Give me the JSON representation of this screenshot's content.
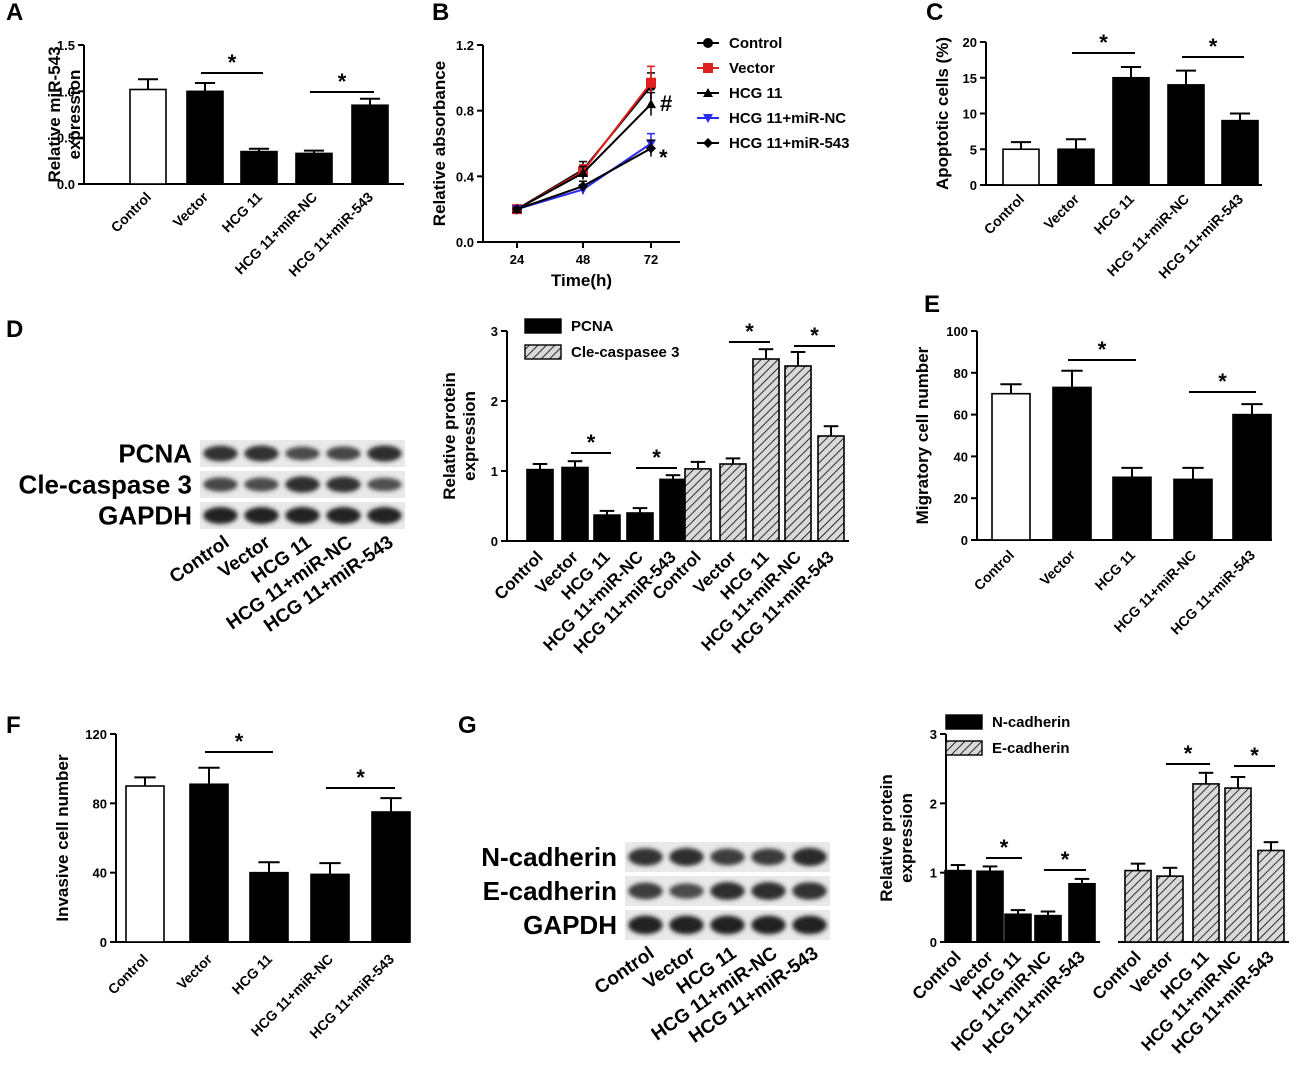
{
  "chart_data": [
    {
      "panel": "A",
      "type": "bar",
      "ylabel": [
        "Relative miR-543",
        "expression"
      ],
      "ylim": [
        0,
        1.5
      ],
      "yticks": [
        "0.0",
        "0.5",
        "1.0",
        "1.5"
      ],
      "categories": [
        "Control",
        "Vector",
        "HCG 11",
        "HCG 11+miR-NC",
        "HCG 11+miR-543"
      ],
      "values": [
        1.02,
        1.0,
        0.35,
        0.33,
        0.85
      ],
      "errors": [
        0.11,
        0.09,
        0.03,
        0.03,
        0.07
      ],
      "fills": [
        "white",
        "black",
        "black",
        "black",
        "black"
      ],
      "significance": [
        {
          "from": 1,
          "to": 2,
          "mark": "*"
        },
        {
          "from": 3,
          "to": 4,
          "mark": "*"
        }
      ]
    },
    {
      "panel": "B",
      "type": "line",
      "xlabel": "Time(h)",
      "ylabel": "Relative absorbance",
      "x": [
        "24",
        "48",
        "72"
      ],
      "ylim": [
        0,
        1.2
      ],
      "yticks": [
        "0.0",
        "0.4",
        "0.8",
        "1.2"
      ],
      "series": [
        {
          "name": "Control",
          "values": [
            0.2,
            0.44,
            0.95
          ],
          "color": "#000000",
          "marker": "circle"
        },
        {
          "name": "Vector",
          "values": [
            0.2,
            0.43,
            0.97
          ],
          "color": "#e02020",
          "marker": "square"
        },
        {
          "name": "HCG 11",
          "values": [
            0.2,
            0.42,
            0.84
          ],
          "color": "#000000",
          "marker": "triangle-up"
        },
        {
          "name": "HCG 11+miR-NC",
          "values": [
            0.2,
            0.32,
            0.6
          ],
          "color": "#2a2af0",
          "marker": "triangle-down"
        },
        {
          "name": "HCG 11+miR-543",
          "values": [
            0.2,
            0.34,
            0.57
          ],
          "color": "#000000",
          "marker": "diamond"
        }
      ],
      "annotations": [
        "#",
        "*"
      ]
    },
    {
      "panel": "C",
      "type": "bar",
      "ylabel": "Apoptotic cells (%)",
      "ylim": [
        0,
        20
      ],
      "yticks": [
        "0",
        "5",
        "10",
        "15",
        "20"
      ],
      "categories": [
        "Control",
        "Vector",
        "HCG 11",
        "HCG 11+miR-NC",
        "HCG 11+miR-543"
      ],
      "values": [
        5,
        5,
        15,
        14,
        9
      ],
      "errors": [
        1.0,
        1.4,
        1.5,
        2.0,
        1.0
      ],
      "fills": [
        "white",
        "black",
        "black",
        "black",
        "black"
      ],
      "significance": [
        {
          "from": 1,
          "to": 2,
          "mark": "*"
        },
        {
          "from": 3,
          "to": 4,
          "mark": "*"
        }
      ]
    },
    {
      "panel": "D",
      "type": "bar",
      "ylabel": [
        "Relative  protein",
        "expression"
      ],
      "ylim": [
        0,
        3
      ],
      "yticks": [
        "0",
        "1",
        "2",
        "3"
      ],
      "categories": [
        "Control",
        "Vector",
        "HCG 11",
        "HCG 11+miR-NC",
        "HCG 11+miR-543"
      ],
      "series": [
        {
          "name": "PCNA",
          "values": [
            1.02,
            1.05,
            0.37,
            0.4,
            0.88
          ],
          "errors": [
            0.08,
            0.09,
            0.06,
            0.07,
            0.06
          ],
          "fill": "solid"
        },
        {
          "name": "Cle-caspasee 3",
          "values": [
            1.03,
            1.1,
            2.6,
            2.5,
            1.5
          ],
          "errors": [
            0.1,
            0.08,
            0.14,
            0.2,
            0.14
          ],
          "fill": "hatched"
        }
      ],
      "significance": [
        {
          "series": 0,
          "from": 1,
          "to": 2,
          "mark": "*"
        },
        {
          "series": 0,
          "from": 3,
          "to": 4,
          "mark": "*"
        },
        {
          "series": 1,
          "from": 1,
          "to": 2,
          "mark": "*"
        },
        {
          "series": 1,
          "from": 3,
          "to": 4,
          "mark": "*"
        }
      ]
    },
    {
      "panel": "E",
      "type": "bar",
      "ylabel": "Migratory cell number",
      "ylim": [
        0,
        100
      ],
      "yticks": [
        "0",
        "20",
        "40",
        "60",
        "80",
        "100"
      ],
      "categories": [
        "Control",
        "Vector",
        "HCG 11",
        "HCG 11+miR-NC",
        "HCG 11+miR-543"
      ],
      "values": [
        70,
        73,
        30,
        29,
        60
      ],
      "errors": [
        4.5,
        8,
        4.5,
        5.5,
        5
      ],
      "fills": [
        "white",
        "black",
        "black",
        "black",
        "black"
      ],
      "significance": [
        {
          "from": 1,
          "to": 2,
          "mark": "*"
        },
        {
          "from": 3,
          "to": 4,
          "mark": "*"
        }
      ]
    },
    {
      "panel": "F",
      "type": "bar",
      "ylabel": "Invasive cell number",
      "ylim": [
        0,
        120
      ],
      "yticks": [
        "0",
        "40",
        "80",
        "120"
      ],
      "categories": [
        "Control",
        "Vector",
        "HCG 11",
        "HCG 11+miR-NC",
        "HCG 11+miR-543"
      ],
      "values": [
        90,
        91,
        40,
        39,
        75
      ],
      "errors": [
        5,
        9.5,
        6,
        6.5,
        8
      ],
      "fills": [
        "white",
        "black",
        "black",
        "black",
        "black"
      ],
      "significance": [
        {
          "from": 1,
          "to": 2,
          "mark": "*"
        },
        {
          "from": 3,
          "to": 4,
          "mark": "*"
        }
      ]
    },
    {
      "panel": "G",
      "type": "bar",
      "ylabel": [
        "Relative  protein",
        "expression"
      ],
      "ylim": [
        0,
        3
      ],
      "yticks": [
        "0",
        "1",
        "2",
        "3"
      ],
      "categories": [
        "Control",
        "Vector",
        "HCG 11",
        "HCG 11+miR-NC",
        "HCG 11+miR-543"
      ],
      "series": [
        {
          "name": "N-cadherin",
          "values": [
            1.03,
            1.02,
            0.4,
            0.38,
            0.84
          ],
          "errors": [
            0.08,
            0.07,
            0.06,
            0.06,
            0.07
          ],
          "fill": "solid"
        },
        {
          "name": "E-cadherin",
          "values": [
            1.03,
            0.95,
            2.28,
            2.22,
            1.32
          ],
          "errors": [
            0.1,
            0.12,
            0.16,
            0.16,
            0.12
          ],
          "fill": "hatched"
        }
      ],
      "significance": [
        {
          "series": 0,
          "from": 1,
          "to": 2,
          "mark": "*"
        },
        {
          "series": 0,
          "from": 3,
          "to": 4,
          "mark": "*"
        },
        {
          "series": 1,
          "from": 1,
          "to": 2,
          "mark": "*"
        },
        {
          "series": 1,
          "from": 3,
          "to": 4,
          "mark": "*"
        }
      ]
    }
  ],
  "blots": [
    {
      "panel": "D",
      "rows": [
        "PCNA",
        "Cle-caspase 3",
        "GAPDH"
      ],
      "lanes": [
        "Control",
        "Vector",
        "HCG 11",
        "HCG 11+miR-NC",
        "HCG 11+miR-543"
      ],
      "intensity": [
        [
          0.8,
          0.82,
          0.55,
          0.6,
          0.85
        ],
        [
          0.6,
          0.55,
          0.85,
          0.8,
          0.5
        ],
        [
          0.95,
          0.95,
          0.95,
          0.95,
          0.95
        ]
      ]
    },
    {
      "panel": "G",
      "rows": [
        "N-cadherin",
        "E-cadherin",
        "GAPDH"
      ],
      "lanes": [
        "Control",
        "Vector",
        "HCG 11",
        "HCG 11+miR-NC",
        "HCG 11+miR-543"
      ],
      "intensity": [
        [
          0.8,
          0.85,
          0.7,
          0.72,
          0.88
        ],
        [
          0.7,
          0.55,
          0.85,
          0.85,
          0.8
        ],
        [
          0.95,
          0.95,
          0.95,
          0.95,
          0.95
        ]
      ]
    }
  ]
}
